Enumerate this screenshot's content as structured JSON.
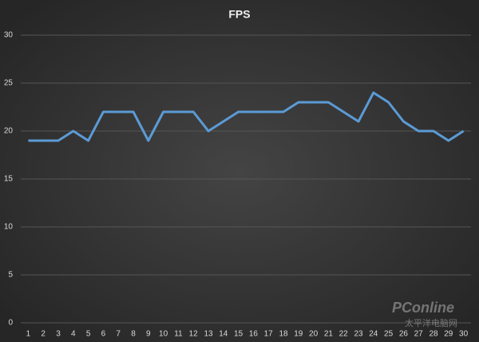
{
  "chart_data": {
    "type": "line",
    "title": "FPS",
    "categories": [
      1,
      2,
      3,
      4,
      5,
      6,
      7,
      8,
      9,
      10,
      11,
      12,
      13,
      14,
      15,
      16,
      17,
      18,
      19,
      20,
      21,
      22,
      23,
      24,
      25,
      26,
      27,
      28,
      29,
      30
    ],
    "series": [
      {
        "name": "FPS",
        "color": "#5b9bd5",
        "values": [
          19,
          19,
          19,
          20,
          19,
          22,
          22,
          22,
          19,
          22,
          22,
          22,
          20,
          21,
          22,
          22,
          22,
          22,
          23,
          23,
          23,
          22,
          21,
          24,
          23,
          21,
          20,
          20,
          19,
          20
        ]
      }
    ],
    "ylim": [
      0,
      30
    ],
    "yticks": [
      0,
      5,
      10,
      15,
      20,
      25,
      30
    ],
    "grid": true
  },
  "watermark": {
    "brand": "PConline",
    "site": "太平洋电脑网"
  }
}
